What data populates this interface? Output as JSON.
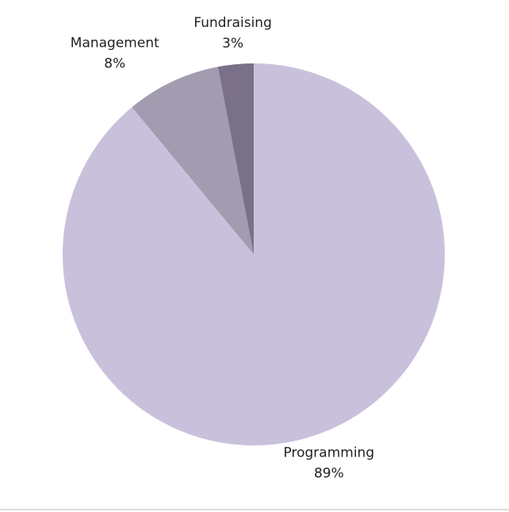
{
  "chart_data": {
    "type": "pie",
    "categories": [
      "Programming",
      "Management",
      "Fundraising"
    ],
    "values": [
      89,
      8,
      3
    ],
    "value_labels": [
      "89%",
      "8%",
      "3%"
    ],
    "colors": [
      "#c9c1dc",
      "#a39bb0",
      "#7a7088"
    ]
  }
}
